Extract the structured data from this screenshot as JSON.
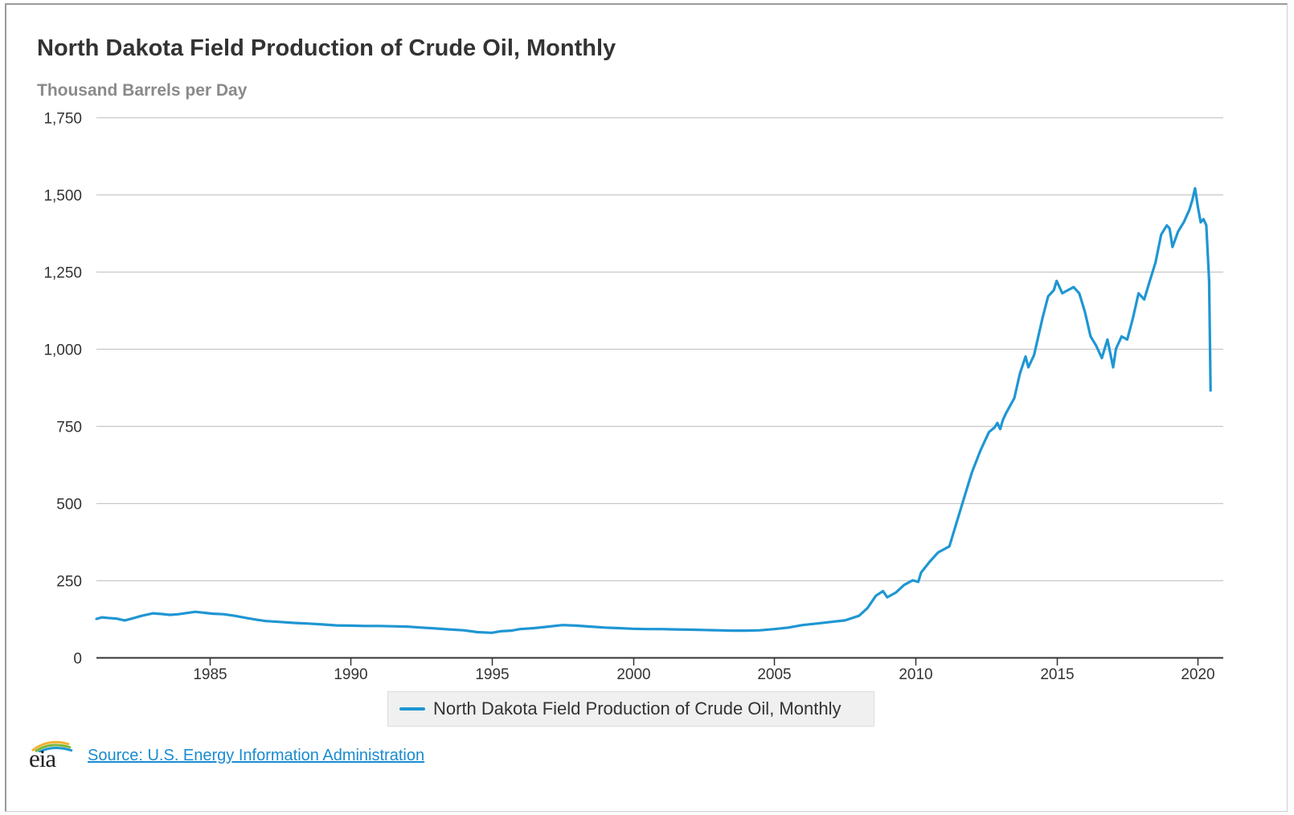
{
  "title": "North Dakota Field Production of Crude Oil, Monthly",
  "subtitle": "Thousand Barrels per Day",
  "legend": {
    "label": "North Dakota Field Production of Crude Oil, Monthly",
    "color": "#1f96d3"
  },
  "source": {
    "label": "Source: U.S. Energy Information Administration"
  },
  "logo": {
    "text": "eia",
    "icon": "eia-logo-icon"
  },
  "chart_data": {
    "type": "line",
    "title": "North Dakota Field Production of Crude Oil, Monthly",
    "ylabel": "Thousand Barrels per Day",
    "xlabel": "",
    "ylim": [
      0,
      1750
    ],
    "xlim": [
      1981.0,
      2020.9
    ],
    "yticks": [
      0,
      250,
      500,
      750,
      1000,
      1250,
      1500,
      1750
    ],
    "ytick_labels": [
      "0",
      "250",
      "500",
      "750",
      "1,000",
      "1,250",
      "1,500",
      "1,750"
    ],
    "xticks": [
      1985,
      1990,
      1995,
      2000,
      2005,
      2010,
      2015,
      2020
    ],
    "xtick_labels": [
      "1985",
      "1990",
      "1995",
      "2000",
      "2005",
      "2010",
      "2015",
      "2020"
    ],
    "grid": true,
    "legend_position": "bottom-center",
    "series": [
      {
        "name": "North Dakota Field Production of Crude Oil, Monthly",
        "color": "#1f96d3",
        "x": [
          1981.0,
          1981.2,
          1981.4,
          1981.7,
          1982.0,
          1982.3,
          1982.6,
          1983.0,
          1983.3,
          1983.6,
          1983.9,
          1984.2,
          1984.5,
          1984.8,
          1985.1,
          1985.5,
          1985.9,
          1986.3,
          1986.7,
          1987.0,
          1987.5,
          1988.0,
          1988.5,
          1989.0,
          1989.5,
          1990.0,
          1990.5,
          1991.0,
          1991.5,
          1992.0,
          1992.5,
          1993.0,
          1993.5,
          1994.0,
          1994.5,
          1995.0,
          1995.3,
          1995.7,
          1996.0,
          1996.5,
          1997.0,
          1997.5,
          1998.0,
          1998.5,
          1999.0,
          1999.5,
          2000.0,
          2000.5,
          2001.0,
          2001.5,
          2002.0,
          2002.5,
          2003.0,
          2003.5,
          2004.0,
          2004.5,
          2005.0,
          2005.5,
          2006.0,
          2006.5,
          2007.0,
          2007.5,
          2008.0,
          2008.3,
          2008.6,
          2008.85,
          2009.0,
          2009.3,
          2009.6,
          2009.9,
          2010.1,
          2010.2,
          2010.5,
          2010.8,
          2011.0,
          2011.2,
          2011.4,
          2011.6,
          2011.8,
          2012.0,
          2012.3,
          2012.6,
          2012.8,
          2012.9,
          2013.0,
          2013.1,
          2013.2,
          2013.5,
          2013.7,
          2013.9,
          2014.0,
          2014.2,
          2014.5,
          2014.7,
          2014.9,
          2015.0,
          2015.2,
          2015.4,
          2015.6,
          2015.8,
          2016.0,
          2016.2,
          2016.4,
          2016.6,
          2016.8,
          2017.0,
          2017.1,
          2017.3,
          2017.5,
          2017.7,
          2017.9,
          2018.1,
          2018.3,
          2018.5,
          2018.7,
          2018.9,
          2019.0,
          2019.1,
          2019.3,
          2019.5,
          2019.7,
          2019.8,
          2019.9,
          2020.0,
          2020.1,
          2020.2,
          2020.3,
          2020.4,
          2020.45
        ],
        "values": [
          125,
          130,
          128,
          126,
          120,
          127,
          135,
          143,
          141,
          138,
          140,
          144,
          148,
          145,
          142,
          140,
          135,
          128,
          122,
          118,
          115,
          112,
          110,
          107,
          104,
          103,
          102,
          102,
          101,
          100,
          97,
          94,
          91,
          88,
          82,
          80,
          85,
          87,
          92,
          95,
          100,
          105,
          103,
          100,
          97,
          95,
          93,
          92,
          92,
          91,
          90,
          89,
          88,
          87,
          87,
          88,
          92,
          97,
          105,
          110,
          115,
          120,
          135,
          160,
          200,
          215,
          195,
          210,
          235,
          250,
          245,
          275,
          310,
          340,
          350,
          360,
          420,
          480,
          540,
          600,
          670,
          730,
          745,
          760,
          740,
          770,
          790,
          840,
          920,
          975,
          940,
          980,
          1100,
          1170,
          1190,
          1220,
          1180,
          1190,
          1200,
          1180,
          1120,
          1040,
          1010,
          970,
          1030,
          940,
          1000,
          1040,
          1030,
          1100,
          1180,
          1160,
          1220,
          1280,
          1370,
          1400,
          1390,
          1330,
          1380,
          1410,
          1450,
          1480,
          1520,
          1460,
          1410,
          1420,
          1400,
          1220,
          865
        ]
      }
    ]
  }
}
